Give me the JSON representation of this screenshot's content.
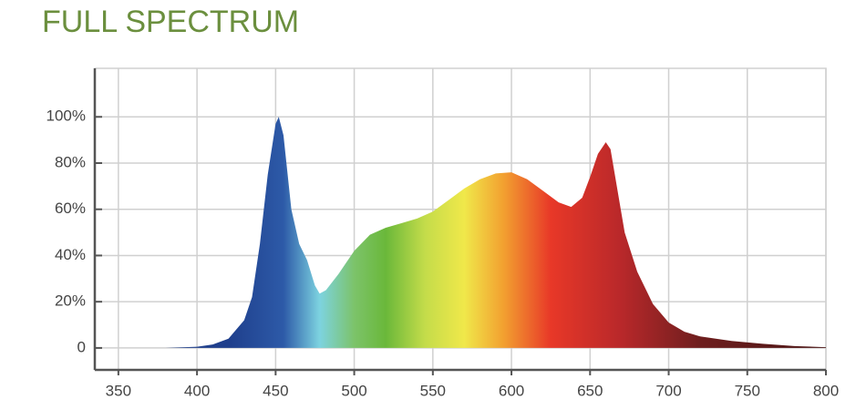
{
  "chart_data": {
    "type": "area",
    "title": "FULL SPECTRUM",
    "x": [
      380,
      400,
      410,
      420,
      430,
      435,
      440,
      445,
      450,
      452,
      455,
      460,
      465,
      470,
      475,
      478,
      482,
      490,
      500,
      510,
      520,
      530,
      540,
      550,
      560,
      570,
      580,
      590,
      600,
      610,
      620,
      630,
      638,
      645,
      650,
      655,
      660,
      663,
      667,
      672,
      680,
      690,
      700,
      710,
      720,
      740,
      760,
      780,
      800
    ],
    "values": [
      0,
      0.5,
      1.5,
      4,
      12,
      22,
      45,
      75,
      97,
      100,
      92,
      60,
      45,
      38,
      27,
      23.5,
      25,
      32,
      42,
      49,
      52,
      54,
      56,
      59,
      64,
      69,
      73,
      75.5,
      76,
      73,
      68,
      63,
      61,
      65,
      74,
      84,
      89,
      86,
      70,
      50,
      33,
      19,
      11,
      7,
      5,
      3,
      1.8,
      0.8,
      0.3
    ],
    "gradient": [
      {
        "x": 420,
        "color": "#1f3f8c"
      },
      {
        "x": 455,
        "color": "#2d5aa8"
      },
      {
        "x": 478,
        "color": "#7dd3e0"
      },
      {
        "x": 500,
        "color": "#7cc36a"
      },
      {
        "x": 520,
        "color": "#6ab83a"
      },
      {
        "x": 545,
        "color": "#c4dc4a"
      },
      {
        "x": 570,
        "color": "#f0e84a"
      },
      {
        "x": 595,
        "color": "#f2a030"
      },
      {
        "x": 625,
        "color": "#e83828"
      },
      {
        "x": 670,
        "color": "#b8282a"
      },
      {
        "x": 720,
        "color": "#6e1e1e"
      },
      {
        "x": 800,
        "color": "#4a1414"
      }
    ],
    "xlim": [
      335,
      800
    ],
    "xticks": [
      350,
      400,
      450,
      500,
      550,
      600,
      650,
      700,
      750,
      800
    ],
    "ylim": [
      -9.5,
      121
    ],
    "yticks": [
      0,
      {
        "value": 20,
        "label": "20%"
      },
      {
        "value": 40,
        "label": "40%"
      },
      {
        "value": 60,
        "label": "60%"
      },
      {
        "value": 80,
        "label": "80%"
      },
      {
        "value": 100,
        "label": "100%"
      }
    ],
    "grid": true
  }
}
